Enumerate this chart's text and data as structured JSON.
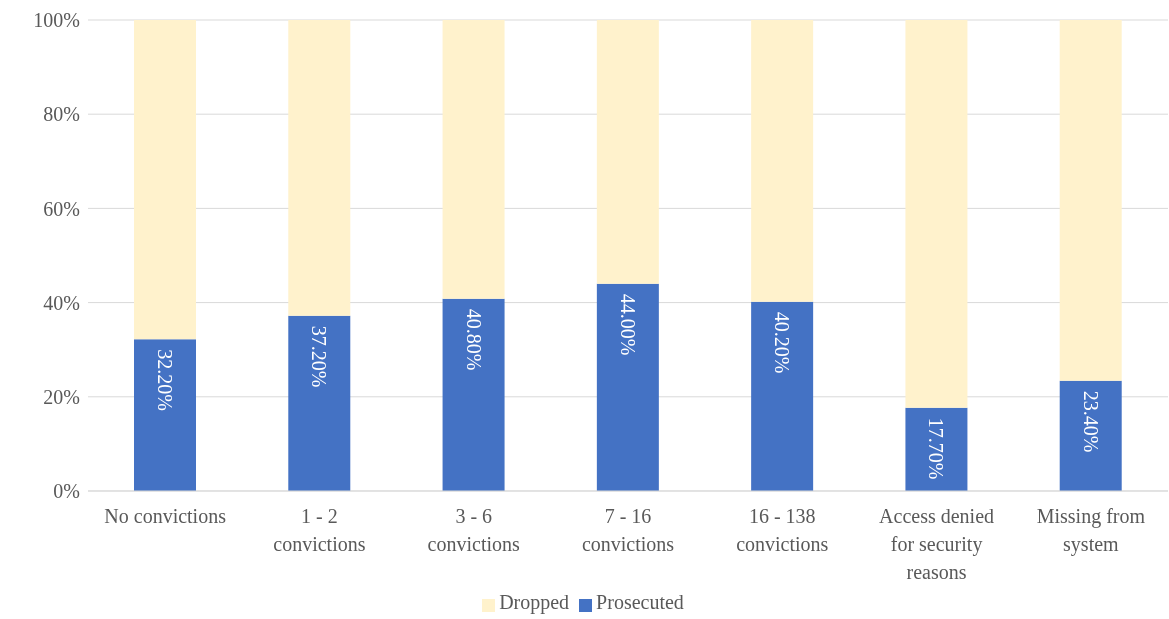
{
  "chart_data": {
    "type": "bar",
    "stacked": true,
    "categories": [
      "No convictions",
      "1 - 2 convictions",
      "3 - 6 convictions",
      "7 - 16 convictions",
      "16 - 138 convictions",
      "Access denied for security reasons",
      "Missing from system"
    ],
    "series": [
      {
        "name": "Prosecuted",
        "color": "#4472c4",
        "values": [
          32.2,
          37.2,
          40.8,
          44.0,
          40.2,
          17.7,
          23.4
        ],
        "value_labels": [
          "32.20%",
          "37.20%",
          "40.80%",
          "44.00%",
          "40.20%",
          "17.70%",
          "23.40%"
        ]
      },
      {
        "name": "Dropped",
        "color": "#fff2cc",
        "values": [
          67.8,
          62.8,
          59.2,
          56.0,
          59.8,
          82.3,
          76.6
        ]
      }
    ],
    "ylim": [
      0,
      100
    ],
    "yticks": [
      {
        "value": 0,
        "label": "0%"
      },
      {
        "value": 20,
        "label": "20%"
      },
      {
        "value": 40,
        "label": "40%"
      },
      {
        "value": 60,
        "label": "60%"
      },
      {
        "value": 80,
        "label": "80%"
      },
      {
        "value": 100,
        "label": "100%"
      }
    ],
    "grid": "y",
    "legend": "bottom"
  }
}
